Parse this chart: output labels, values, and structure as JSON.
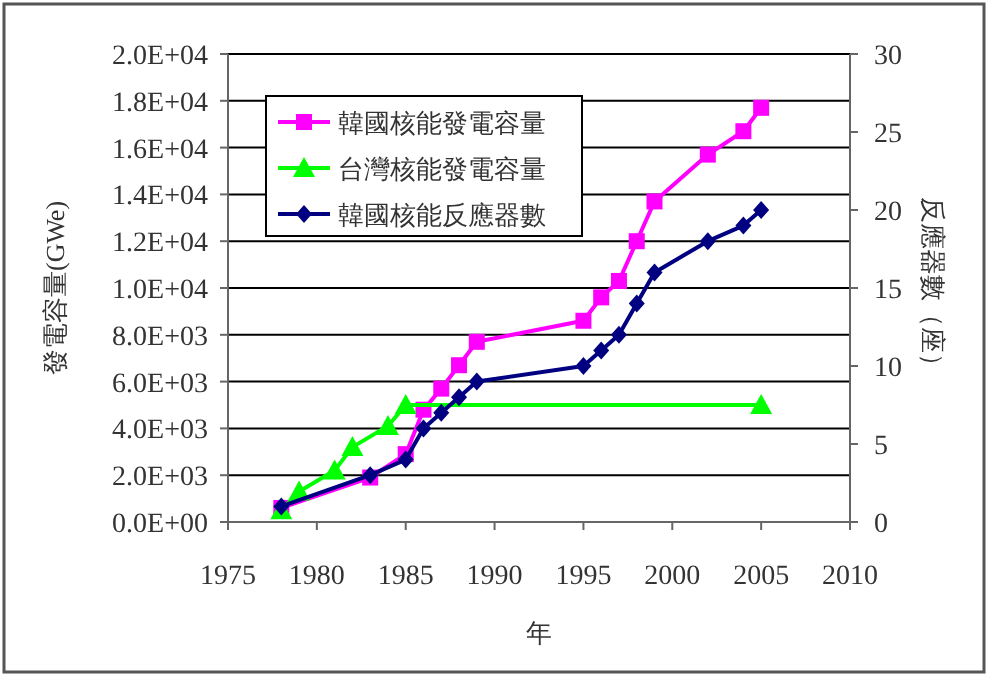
{
  "chart_data": {
    "type": "line",
    "xlabel": "年",
    "ylabel": "發電容量(GWe)",
    "y2label": "反應器數（座）",
    "xlim": [
      1975,
      2010
    ],
    "xticks": [
      1975,
      1980,
      1985,
      1990,
      1995,
      2000,
      2005,
      2010
    ],
    "ylim": [
      0,
      20000
    ],
    "yticks": [
      {
        "value": 0,
        "label": "0.0E+00"
      },
      {
        "value": 2000,
        "label": "2.0E+03"
      },
      {
        "value": 4000,
        "label": "4.0E+03"
      },
      {
        "value": 6000,
        "label": "6.0E+03"
      },
      {
        "value": 8000,
        "label": "8.0E+03"
      },
      {
        "value": 10000,
        "label": "1.0E+04"
      },
      {
        "value": 12000,
        "label": "1.2E+04"
      },
      {
        "value": 14000,
        "label": "1.4E+04"
      },
      {
        "value": 16000,
        "label": "1.6E+04"
      },
      {
        "value": 18000,
        "label": "1.8E+04"
      },
      {
        "value": 20000,
        "label": "2.0E+04"
      }
    ],
    "y2lim": [
      0,
      30
    ],
    "y2ticks": [
      0,
      5,
      10,
      15,
      20,
      25,
      30
    ],
    "grid": "y",
    "legend": "top left",
    "series": [
      {
        "name": "韓國核能發電容量",
        "color": "#ff00ff",
        "marker": "square",
        "x": [
          1978,
          1983,
          1985,
          1986,
          1987,
          1988,
          1989,
          1995,
          1996,
          1997,
          1998,
          1999,
          2002,
          2004,
          2005
        ],
        "values": [
          600,
          1900,
          2900,
          4800,
          5700,
          6700,
          7700,
          8600,
          9600,
          10300,
          12000,
          13700,
          15700,
          16700,
          17700
        ]
      },
      {
        "name": "台灣核能發電容量",
        "color": "#00ff00",
        "marker": "triangle",
        "x": [
          1978,
          1979,
          1981,
          1982,
          1984,
          1985,
          2005
        ],
        "values": [
          500,
          1300,
          2200,
          3200,
          4100,
          5000,
          5000
        ]
      },
      {
        "name": "韓國核能反應器數",
        "color": "#000080",
        "marker": "diamond",
        "axis": "y2",
        "x": [
          1978,
          1983,
          1985,
          1986,
          1987,
          1988,
          1989,
          1995,
          1996,
          1997,
          1998,
          1999,
          2002,
          2004,
          2005
        ],
        "values": [
          1,
          3,
          4,
          6,
          7,
          8,
          9,
          10,
          11,
          12,
          14,
          16,
          18,
          19,
          20
        ]
      }
    ]
  }
}
